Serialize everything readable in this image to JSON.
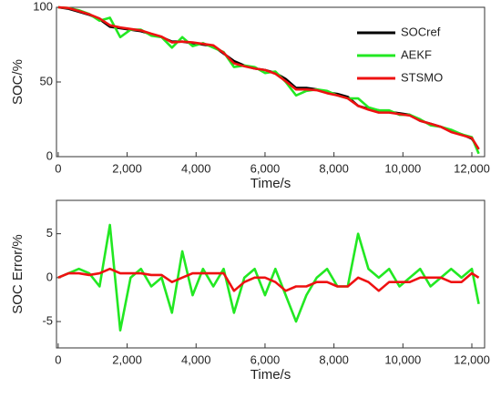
{
  "chart_data": [
    {
      "type": "line",
      "ylabel": "SOC/%",
      "xlabel": "Time/s",
      "x": [
        0,
        300,
        600,
        900,
        1200,
        1500,
        1800,
        2100,
        2400,
        2700,
        3000,
        3300,
        3600,
        3900,
        4200,
        4500,
        4800,
        5100,
        5400,
        5700,
        6000,
        6300,
        6600,
        6900,
        7200,
        7500,
        7800,
        8100,
        8400,
        8700,
        9000,
        9300,
        9600,
        9900,
        10200,
        10500,
        10800,
        11100,
        11400,
        11700,
        12000,
        12200
      ],
      "series": [
        {
          "name": "SOCref",
          "color": "#000000",
          "values": [
            100,
            99,
            97,
            95,
            92,
            87,
            86,
            85,
            84,
            82,
            80,
            77,
            77,
            76,
            75,
            74,
            69,
            64,
            61,
            59,
            58,
            56,
            52,
            46,
            46,
            45,
            43,
            42,
            40,
            34,
            32,
            31,
            30,
            29,
            28,
            24,
            22,
            20,
            17,
            15,
            12,
            5
          ]
        },
        {
          "name": "AEKF",
          "color": "#22e822",
          "values": [
            100,
            99.5,
            98,
            95.5,
            91,
            93,
            80,
            85,
            85,
            81,
            80,
            73,
            80,
            74,
            76,
            73,
            70,
            60,
            61,
            60,
            56,
            57,
            50,
            41,
            44,
            45,
            44,
            41,
            39,
            39,
            33,
            31,
            31,
            28,
            28,
            25,
            21,
            20,
            18,
            15,
            13,
            2
          ]
        },
        {
          "name": "STSMO",
          "color": "#ee1111",
          "values": [
            100,
            99.5,
            97.5,
            95.3,
            92.5,
            88,
            86.5,
            85.5,
            84.5,
            82.3,
            80.3,
            76.5,
            77,
            76.5,
            75.5,
            74.5,
            69.5,
            62.5,
            60.5,
            59,
            58,
            55.5,
            50.5,
            45,
            45,
            44.5,
            42.5,
            41,
            39,
            34,
            31.5,
            29.5,
            29.5,
            28.5,
            27.5,
            24,
            22,
            20,
            16.5,
            14.5,
            12.5,
            5
          ]
        }
      ],
      "xlim": [
        -50,
        12370
      ],
      "ylim": [
        0,
        100
      ],
      "yticks": [
        0,
        50,
        100
      ],
      "xticks": [
        0,
        {
          "value": 2000,
          "label": "2,000"
        },
        {
          "value": 4000,
          "label": "4,000"
        },
        {
          "value": 6000,
          "label": "6,000"
        },
        {
          "value": 8000,
          "label": "8,000"
        },
        {
          "value": 10000,
          "label": "10,000"
        },
        {
          "value": 12000,
          "label": "12,000"
        }
      ],
      "legend": "upper right"
    },
    {
      "type": "line",
      "ylabel": "SOC Error/%",
      "xlabel": "Time/s",
      "x": [
        0,
        300,
        600,
        900,
        1200,
        1500,
        1800,
        2100,
        2400,
        2700,
        3000,
        3300,
        3600,
        3900,
        4200,
        4500,
        4800,
        5100,
        5400,
        5700,
        6000,
        6300,
        6600,
        6900,
        7200,
        7500,
        7800,
        8100,
        8400,
        8700,
        9000,
        9300,
        9600,
        9900,
        10200,
        10500,
        10800,
        11100,
        11400,
        11700,
        12000,
        12200
      ],
      "series": [
        {
          "name": "AEKF",
          "color": "#22e822",
          "values": [
            0,
            0.5,
            1,
            0.5,
            -1,
            6,
            -6,
            0,
            1,
            -1,
            0,
            -4,
            3,
            -2,
            1,
            -1,
            1,
            -4,
            0,
            1,
            -2,
            1,
            -2,
            -5,
            -2,
            0,
            1,
            -1,
            -1,
            5,
            1,
            0,
            1,
            -1,
            0,
            1,
            -1,
            0,
            1,
            0,
            1,
            -3
          ]
        },
        {
          "name": "STSMO",
          "color": "#ee1111",
          "values": [
            0,
            0.5,
            0.5,
            0.3,
            0.5,
            1,
            0.5,
            0.5,
            0.5,
            0.3,
            0.3,
            -0.5,
            0,
            0.5,
            0.5,
            0.5,
            0.5,
            -1.5,
            -0.5,
            0,
            0,
            -0.5,
            -1.5,
            -1,
            -1,
            -0.5,
            -0.5,
            -1,
            -1,
            0,
            -0.5,
            -1.5,
            -0.5,
            -0.5,
            -0.5,
            0,
            0,
            0,
            -0.5,
            -0.5,
            0.5,
            0
          ]
        }
      ],
      "xlim": [
        -50,
        12370
      ],
      "ylim": [
        -8,
        8.8
      ],
      "yticks": [
        -5,
        0,
        5
      ],
      "xticks": [
        0,
        {
          "value": 2000,
          "label": "2,000"
        },
        {
          "value": 4000,
          "label": "4,000"
        },
        {
          "value": 6000,
          "label": "6,000"
        },
        {
          "value": 8000,
          "label": "8,000"
        },
        {
          "value": 10000,
          "label": "10,000"
        },
        {
          "value": 12000,
          "label": "12,000"
        }
      ]
    }
  ]
}
